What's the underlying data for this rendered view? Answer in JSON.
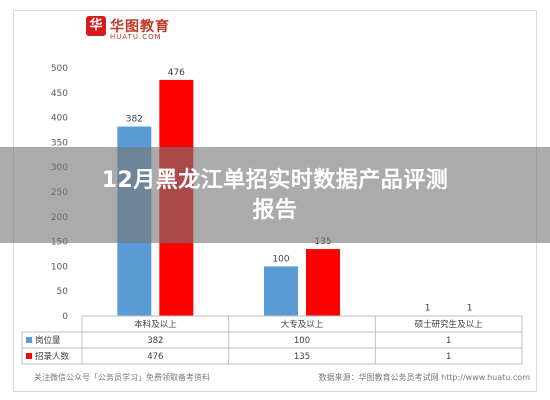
{
  "logo": {
    "mark": "华",
    "text": "华图教育",
    "sub": "HUATU.COM"
  },
  "title_line1": "12月黑龙江单招实时数据产品评测",
  "title_line2": "报告",
  "chart_data": {
    "type": "bar",
    "categories": [
      "本科及以上",
      "大专及以上",
      "硕士研究生及以上"
    ],
    "series": [
      {
        "name": "岗位量",
        "values": [
          382,
          100,
          1
        ],
        "color": "#5b9bd5"
      },
      {
        "name": "招录人数",
        "values": [
          476,
          135,
          1
        ],
        "color": "#ff0000"
      }
    ],
    "ylim": [
      0,
      500
    ],
    "yticks": [
      0,
      50,
      100,
      150,
      200,
      250,
      300,
      350,
      400,
      450,
      500
    ],
    "grid": false,
    "legend": "table-below"
  },
  "footer": {
    "left": "关注微信公众号「公务员学习」免费领取备考资料",
    "right": "数据来源：华图教育公务员考试网 http://www.huatu.com"
  }
}
